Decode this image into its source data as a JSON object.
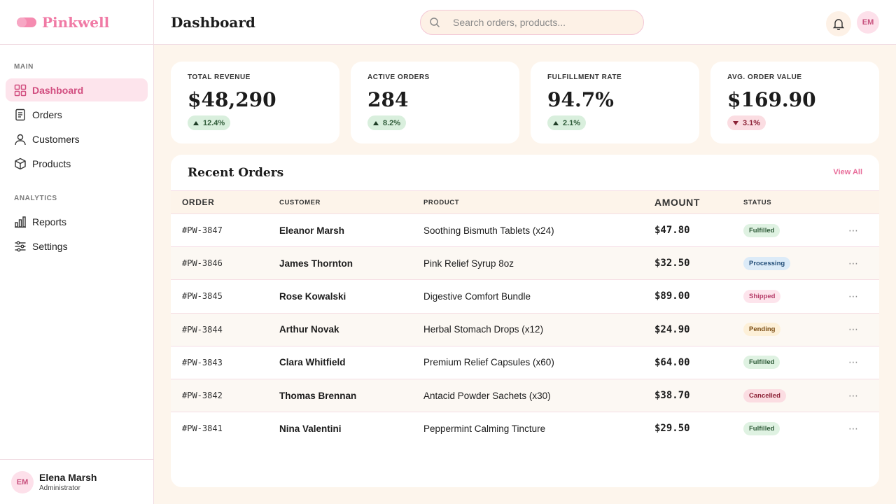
{
  "brand": {
    "name": "Pinkwell"
  },
  "sidebar": {
    "sections": [
      {
        "heading": "MAIN",
        "items": [
          {
            "label": "Dashboard",
            "icon": "grid-icon",
            "active": true
          },
          {
            "label": "Orders",
            "icon": "document-icon",
            "active": false
          },
          {
            "label": "Customers",
            "icon": "user-icon",
            "active": false
          },
          {
            "label": "Products",
            "icon": "box-icon",
            "active": false
          }
        ]
      },
      {
        "heading": "ANALYTICS",
        "items": [
          {
            "label": "Reports",
            "icon": "bar-chart-icon",
            "active": false
          },
          {
            "label": "Settings",
            "icon": "sliders-icon",
            "active": false
          }
        ]
      }
    ],
    "user": {
      "initials": "EM",
      "name": "Elena Marsh",
      "role": "Administrator"
    }
  },
  "header": {
    "title": "Dashboard",
    "search_placeholder": "Search orders, products...",
    "avatar_initials": "EM"
  },
  "stats": [
    {
      "label": "TOTAL REVENUE",
      "value": "$48,290",
      "delta": "12.4%",
      "direction": "up"
    },
    {
      "label": "ACTIVE ORDERS",
      "value": "284",
      "delta": "8.2%",
      "direction": "up"
    },
    {
      "label": "FULFILLMENT RATE",
      "value": "94.7%",
      "delta": "2.1%",
      "direction": "up"
    },
    {
      "label": "AVG. ORDER VALUE",
      "value": "$169.90",
      "delta": "3.1%",
      "direction": "down"
    }
  ],
  "orders": {
    "title": "Recent Orders",
    "view_all": "View All",
    "columns": [
      "ORDER",
      "CUSTOMER",
      "PRODUCT",
      "AMOUNT",
      "STATUS"
    ],
    "rows": [
      {
        "order": "#PW-3847",
        "customer": "Eleanor Marsh",
        "product": "Soothing Bismuth Tablets (x24)",
        "amount": "$47.80",
        "status": "Fulfilled"
      },
      {
        "order": "#PW-3846",
        "customer": "James Thornton",
        "product": "Pink Relief Syrup 8oz",
        "amount": "$32.50",
        "status": "Processing"
      },
      {
        "order": "#PW-3845",
        "customer": "Rose Kowalski",
        "product": "Digestive Comfort Bundle",
        "amount": "$89.00",
        "status": "Shipped"
      },
      {
        "order": "#PW-3844",
        "customer": "Arthur Novak",
        "product": "Herbal Stomach Drops (x12)",
        "amount": "$24.90",
        "status": "Pending"
      },
      {
        "order": "#PW-3843",
        "customer": "Clara Whitfield",
        "product": "Premium Relief Capsules (x60)",
        "amount": "$64.00",
        "status": "Fulfilled"
      },
      {
        "order": "#PW-3842",
        "customer": "Thomas Brennan",
        "product": "Antacid Powder Sachets (x30)",
        "amount": "$38.70",
        "status": "Cancelled"
      },
      {
        "order": "#PW-3841",
        "customer": "Nina Valentini",
        "product": "Peppermint Calming Tincture",
        "amount": "$29.50",
        "status": "Fulfilled"
      }
    ]
  },
  "colors": {
    "accent": "#f07aa5",
    "active_bg": "#fde4ec",
    "page_bg": "#fdf5ec",
    "delta_up_bg": "#d9efdd",
    "delta_down_bg": "#fbdde2"
  }
}
